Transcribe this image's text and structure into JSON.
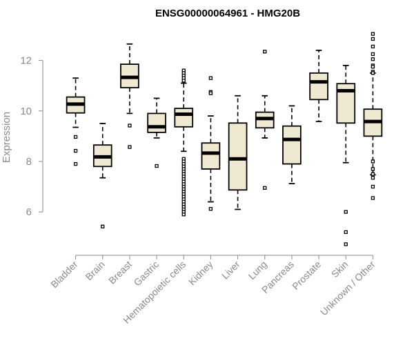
{
  "chart_data": {
    "type": "boxplot",
    "title": "ENSG00000064961 - HMG20B",
    "xlabel": "",
    "ylabel": "Expression",
    "ylim": [
      4.5,
      13.3
    ],
    "yticks": [
      6,
      8,
      10,
      12
    ],
    "box_fill": "#efe9d2",
    "categories": [
      "Bladder",
      "Brain",
      "Breast",
      "Gastric",
      "Hematopoietic cells",
      "Kidney",
      "Liver",
      "Lung",
      "Pancreas",
      "Prostate",
      "Skin",
      "Unknown / Other"
    ],
    "boxes": [
      {
        "name": "Bladder",
        "min": 9.35,
        "q1": 9.92,
        "median": 10.27,
        "q3": 10.55,
        "max": 11.3,
        "outliers": [
          8.97,
          8.42,
          7.9
        ]
      },
      {
        "name": "Brain",
        "min": 7.35,
        "q1": 7.8,
        "median": 8.18,
        "q3": 8.65,
        "max": 9.5,
        "outliers": [
          5.42
        ]
      },
      {
        "name": "Breast",
        "min": 9.9,
        "q1": 10.92,
        "median": 11.33,
        "q3": 11.85,
        "max": 12.65,
        "outliers": [
          9.42,
          8.57
        ]
      },
      {
        "name": "Gastric",
        "min": 8.93,
        "q1": 9.15,
        "median": 9.37,
        "q3": 9.9,
        "max": 10.5,
        "outliers": [
          7.82
        ]
      },
      {
        "name": "Hematopoietic cells",
        "min": 8.4,
        "q1": 9.37,
        "median": 9.87,
        "q3": 10.1,
        "max": 11.1,
        "outliers": [
          11.6,
          11.5,
          11.4,
          11.3,
          11.2,
          8.1,
          8.0,
          7.9,
          7.8,
          7.7,
          7.6,
          7.5,
          7.4,
          7.3,
          7.2,
          7.1,
          7.0,
          6.9,
          6.8,
          6.7,
          6.6,
          6.5,
          6.4,
          6.3,
          6.2,
          6.1,
          6.0,
          5.9
        ]
      },
      {
        "name": "Kidney",
        "min": 6.4,
        "q1": 7.7,
        "median": 8.33,
        "q3": 8.73,
        "max": 9.8,
        "outliers": [
          11.3,
          10.75,
          10.7,
          6.12
        ]
      },
      {
        "name": "Liver",
        "min": 6.1,
        "q1": 6.87,
        "median": 8.1,
        "q3": 9.52,
        "max": 10.6,
        "outliers": []
      },
      {
        "name": "Lung",
        "min": 8.93,
        "q1": 9.33,
        "median": 9.7,
        "q3": 9.95,
        "max": 10.6,
        "outliers": [
          12.35,
          6.95
        ]
      },
      {
        "name": "Pancreas",
        "min": 7.12,
        "q1": 7.9,
        "median": 8.87,
        "q3": 9.4,
        "max": 10.2,
        "outliers": []
      },
      {
        "name": "Prostate",
        "min": 9.58,
        "q1": 10.45,
        "median": 11.15,
        "q3": 11.5,
        "max": 12.4,
        "outliers": []
      },
      {
        "name": "Skin",
        "min": 7.95,
        "q1": 9.52,
        "median": 10.8,
        "q3": 11.08,
        "max": 11.8,
        "outliers": [
          6.0,
          5.2,
          4.72
        ]
      },
      {
        "name": "Unknown / Other",
        "min": 7.47,
        "q1": 9.0,
        "median": 9.58,
        "q3": 10.07,
        "max": 11.5,
        "outliers": [
          13.05,
          12.85,
          12.55,
          12.25,
          12.05,
          11.8,
          11.75,
          11.55,
          11.5,
          8.0,
          7.7,
          7.5,
          7.35,
          7.0,
          6.55
        ]
      }
    ]
  }
}
